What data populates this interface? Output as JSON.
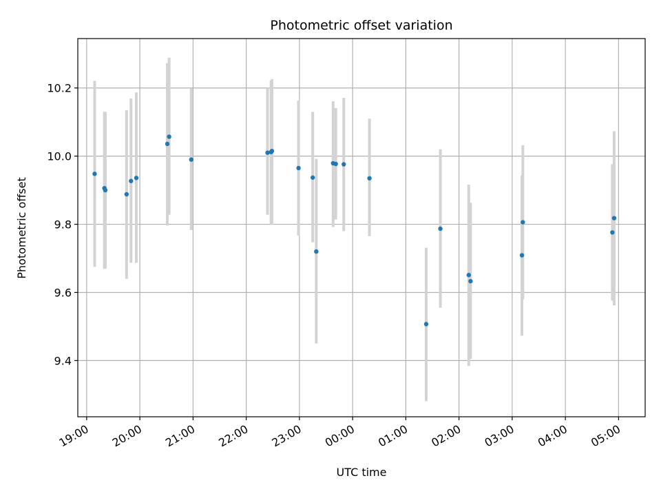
{
  "chart_data": {
    "type": "scatter",
    "title": "Photometric offset variation",
    "xlabel": "UTC time",
    "ylabel": "Photometric offset",
    "x_axis_type": "time",
    "xlim": [
      "18:50",
      "05:30"
    ],
    "ylim": [
      9.235,
      10.345
    ],
    "grid": true,
    "x_ticks": [
      "19:00",
      "20:00",
      "21:00",
      "22:00",
      "23:00",
      "00:00",
      "01:00",
      "02:00",
      "03:00",
      "04:00",
      "05:00"
    ],
    "y_ticks": [
      "9.4",
      "9.6",
      "9.8",
      "10.0",
      "10.2"
    ],
    "y_tick_values": [
      9.4,
      9.6,
      9.8,
      10.0,
      10.2
    ],
    "point_color": "#1f77b4",
    "errorbar_color": "#d3d3d3",
    "points": [
      {
        "t": "19:09",
        "y": 9.948,
        "lo": 9.675,
        "hi": 10.221
      },
      {
        "t": "19:20",
        "y": 9.906,
        "lo": 9.669,
        "hi": 10.13
      },
      {
        "t": "19:21",
        "y": 9.9,
        "lo": 9.67,
        "hi": 10.13
      },
      {
        "t": "19:45",
        "y": 9.888,
        "lo": 9.64,
        "hi": 10.135
      },
      {
        "t": "19:50",
        "y": 9.927,
        "lo": 9.687,
        "hi": 10.169
      },
      {
        "t": "19:56",
        "y": 9.936,
        "lo": 9.687,
        "hi": 10.187
      },
      {
        "t": "20:31",
        "y": 10.036,
        "lo": 9.796,
        "hi": 10.273
      },
      {
        "t": "20:33",
        "y": 10.057,
        "lo": 9.828,
        "hi": 10.289
      },
      {
        "t": "20:58",
        "y": 9.99,
        "lo": 9.783,
        "hi": 10.199
      },
      {
        "t": "22:24",
        "y": 10.01,
        "lo": 9.828,
        "hi": 10.2
      },
      {
        "t": "22:28",
        "y": 10.012,
        "lo": 9.8,
        "hi": 10.222
      },
      {
        "t": "22:29",
        "y": 10.015,
        "lo": 9.803,
        "hi": 10.226
      },
      {
        "t": "22:59",
        "y": 9.965,
        "lo": 9.767,
        "hi": 10.163
      },
      {
        "t": "23:15",
        "y": 9.937,
        "lo": 9.747,
        "hi": 10.13
      },
      {
        "t": "23:19",
        "y": 9.72,
        "lo": 9.45,
        "hi": 9.992
      },
      {
        "t": "23:38",
        "y": 9.979,
        "lo": 9.792,
        "hi": 10.161
      },
      {
        "t": "23:41",
        "y": 9.977,
        "lo": 9.814,
        "hi": 10.141
      },
      {
        "t": "23:50",
        "y": 9.976,
        "lo": 9.78,
        "hi": 10.171
      },
      {
        "t": "00:19",
        "y": 9.935,
        "lo": 9.765,
        "hi": 10.11
      },
      {
        "t": "01:23",
        "y": 9.507,
        "lo": 9.281,
        "hi": 9.731
      },
      {
        "t": "01:39",
        "y": 9.787,
        "lo": 9.555,
        "hi": 10.02
      },
      {
        "t": "02:11",
        "y": 9.651,
        "lo": 9.384,
        "hi": 9.916
      },
      {
        "t": "02:13",
        "y": 9.633,
        "lo": 9.405,
        "hi": 9.863
      },
      {
        "t": "03:11",
        "y": 9.709,
        "lo": 9.473,
        "hi": 9.943
      },
      {
        "t": "03:12",
        "y": 9.806,
        "lo": 9.58,
        "hi": 10.032
      },
      {
        "t": "04:53",
        "y": 9.776,
        "lo": 9.576,
        "hi": 9.976
      },
      {
        "t": "04:55",
        "y": 9.818,
        "lo": 9.562,
        "hi": 10.073
      }
    ]
  }
}
